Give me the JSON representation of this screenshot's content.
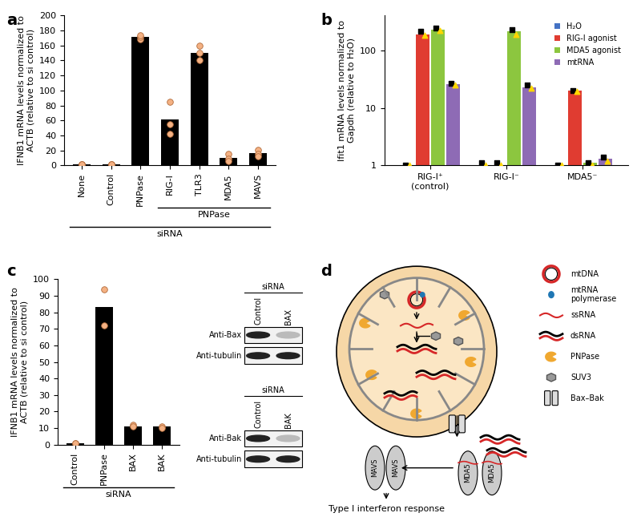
{
  "chart_data": [
    {
      "panel": "a",
      "type": "bar",
      "categories": [
        "None",
        "Control",
        "PNPase",
        "RIG-I",
        "TLR3",
        "MDA5",
        "MAVS"
      ],
      "values": [
        1,
        1,
        171,
        61,
        150,
        10,
        16
      ],
      "points": [
        [
          1,
          1,
          1
        ],
        [
          1,
          1,
          1
        ],
        [
          168,
          171,
          174
        ],
        [
          85,
          55,
          42
        ],
        [
          160,
          150,
          140
        ],
        [
          15,
          9,
          6
        ],
        [
          21,
          15,
          12
        ]
      ],
      "color": "#000000",
      "ylabel": "IFNB1 mRNA levels normalized to\nACTB (relative to si control)",
      "ylim": [
        0,
        200
      ],
      "yticks": [
        0,
        20,
        40,
        60,
        80,
        100,
        120,
        140,
        160,
        180,
        200
      ],
      "groups": [
        {
          "label": "PNPase",
          "members": [
            "RIG-I",
            "TLR3",
            "MDA5",
            "MAVS"
          ]
        },
        {
          "label": "siRNA",
          "members": [
            "None",
            "Control",
            "PNPase",
            "RIG-I",
            "TLR3",
            "MDA5",
            "MAVS"
          ]
        }
      ]
    },
    {
      "panel": "b",
      "type": "bar",
      "log": "y",
      "categories": [
        "RIG-I⁺\n(control)",
        "RIG-I⁻",
        "MDA5⁻"
      ],
      "series": [
        {
          "name": "H₂O",
          "color": "#4472c4",
          "values": [
            1,
            1,
            1
          ],
          "points": [
            [
              1,
              1
            ],
            [
              1.1,
              1
            ],
            [
              1,
              1
            ]
          ]
        },
        {
          "name": "RIG-I agonist",
          "color": "#e03c31",
          "values": [
            190,
            1,
            20
          ],
          "points": [
            [
              210,
              180
            ],
            [
              1.1,
              1
            ],
            [
              20,
              19
            ]
          ]
        },
        {
          "name": "MDA5 agonist",
          "color": "#8cc63f",
          "values": [
            230,
            210,
            1.1
          ],
          "points": [
            [
              240,
              220
            ],
            [
              230,
              190
            ],
            [
              1.1,
              1
            ]
          ]
        },
        {
          "name": "mtRNA",
          "color": "#8e6bb5",
          "values": [
            26,
            23,
            1.3
          ],
          "points": [
            [
              27,
              25
            ],
            [
              25,
              22
            ],
            [
              1.4,
              1.2
            ]
          ]
        }
      ],
      "ylabel": "Ifit1 mRNA levels normalized to\nGapdh (relative to H₂O)",
      "ylim": [
        1,
        400
      ],
      "yticks": [
        1,
        10,
        100
      ],
      "legend": "upper right"
    },
    {
      "panel": "c",
      "type": "bar",
      "categories": [
        "Control",
        "PNPase",
        "BAX",
        "BAK"
      ],
      "values": [
        1,
        83,
        11,
        11
      ],
      "points": [
        [
          1,
          1
        ],
        [
          94,
          72
        ],
        [
          12,
          11
        ],
        [
          11,
          10
        ]
      ],
      "color": "#000000",
      "ylabel": "IFNB1 mRNA levels normalized to\nACTB (relative to si control)",
      "ylim": [
        0,
        100
      ],
      "yticks": [
        0,
        10,
        20,
        30,
        40,
        50,
        60,
        70,
        80,
        90,
        100
      ],
      "groups": [
        {
          "label": "siRNA",
          "members": [
            "Control",
            "PNPase",
            "BAX",
            "BAK"
          ]
        }
      ]
    }
  ],
  "blots": [
    {
      "header": "siRNA",
      "lanes": [
        "Control",
        "BAX"
      ],
      "rows": [
        "Anti-Bax",
        "Anti-tubulin"
      ]
    },
    {
      "header": "siRNA",
      "lanes": [
        "Control",
        "BAK"
      ],
      "rows": [
        "Anti-Bak",
        "Anti-tubulin"
      ]
    }
  ],
  "diagram": {
    "panel": "d",
    "legend_items": [
      "mtDNA",
      "mtRNA\npolymerase",
      "ssRNA",
      "dsRNA",
      "PNPase",
      "SUV3",
      "Bax–Bak"
    ],
    "mavs": [
      "MAVS",
      "MAVS"
    ],
    "mda5": [
      "MDA5",
      "MDA5"
    ],
    "output": "Type I interferon response"
  }
}
